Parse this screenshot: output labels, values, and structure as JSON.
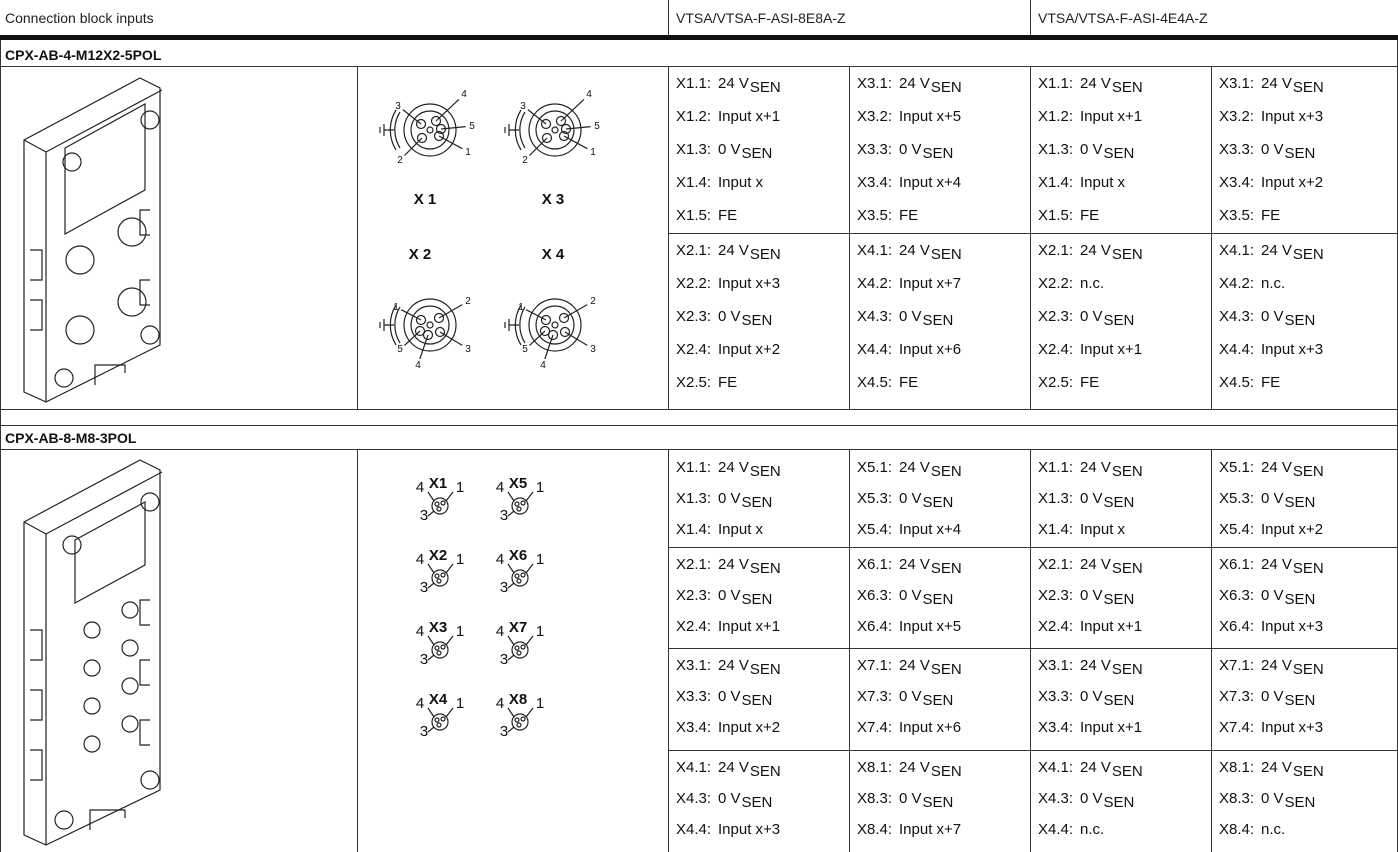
{
  "header": {
    "col0": "Connection block inputs",
    "variant1": "VTSA/VTSA-F-ASI-8E8A-Z",
    "variant2": "VTSA/VTSA-F-ASI-4E4A-Z"
  },
  "sections": [
    {
      "title": "CPX-AB-4-M12X2-5POL",
      "connectors": [
        {
          "label": "X 1",
          "pins": [
            "1",
            "2",
            "3",
            "4",
            "5"
          ]
        },
        {
          "label": "X 3",
          "pins": [
            "1",
            "2",
            "3",
            "4",
            "5"
          ]
        },
        {
          "label": "X 2",
          "pins": [
            "1",
            "2",
            "3",
            "4",
            "5"
          ]
        },
        {
          "label": "X 4",
          "pins": [
            "1",
            "2",
            "3",
            "4",
            "5"
          ]
        }
      ],
      "groups": [
        [
          [
            [
              "X1.1:",
              "24 V",
              "SEN"
            ],
            [
              "X1.2:",
              "Input x+1"
            ],
            [
              "X1.3:",
              "0 V",
              "SEN"
            ],
            [
              "X1.4:",
              "Input x"
            ],
            [
              "X1.5:",
              "FE"
            ]
          ],
          [
            [
              "X3.1:",
              "24 V",
              "SEN"
            ],
            [
              "X3.2:",
              "Input x+5"
            ],
            [
              "X3.3:",
              "0 V",
              "SEN"
            ],
            [
              "X3.4:",
              "Input x+4"
            ],
            [
              "X3.5:",
              "FE"
            ]
          ],
          [
            [
              "X1.1:",
              "24 V",
              "SEN"
            ],
            [
              "X1.2:",
              "Input x+1"
            ],
            [
              "X1.3:",
              "0 V",
              "SEN"
            ],
            [
              "X1.4:",
              "Input x"
            ],
            [
              "X1.5:",
              "FE"
            ]
          ],
          [
            [
              "X3.1:",
              "24 V",
              "SEN"
            ],
            [
              "X3.2:",
              "Input x+3"
            ],
            [
              "X3.3:",
              "0 V",
              "SEN"
            ],
            [
              "X3.4:",
              "Input x+2"
            ],
            [
              "X3.5:",
              "FE"
            ]
          ]
        ],
        [
          [
            [
              "X2.1:",
              "24 V",
              "SEN"
            ],
            [
              "X2.2:",
              "Input x+3"
            ],
            [
              "X2.3:",
              "0 V",
              "SEN"
            ],
            [
              "X2.4:",
              "Input x+2"
            ],
            [
              "X2.5:",
              "FE"
            ]
          ],
          [
            [
              "X4.1:",
              "24 V",
              "SEN"
            ],
            [
              "X4.2:",
              "Input x+7"
            ],
            [
              "X4.3:",
              "0 V",
              "SEN"
            ],
            [
              "X4.4:",
              "Input x+6"
            ],
            [
              "X4.5:",
              "FE"
            ]
          ],
          [
            [
              "X2.1:",
              "24 V",
              "SEN"
            ],
            [
              "X2.2:",
              "n.c."
            ],
            [
              "X2.3:",
              "0 V",
              "SEN"
            ],
            [
              "X2.4:",
              "Input x+1"
            ],
            [
              "X2.5:",
              "FE"
            ]
          ],
          [
            [
              "X4.1:",
              "24 V",
              "SEN"
            ],
            [
              "X4.2:",
              "n.c."
            ],
            [
              "X4.3:",
              "0 V",
              "SEN"
            ],
            [
              "X4.4:",
              "Input x+3"
            ],
            [
              "X4.5:",
              "FE"
            ]
          ]
        ]
      ]
    },
    {
      "title": "CPX-AB-8-M8-3POL",
      "connectors": [
        {
          "label": "X1",
          "pins": [
            "4",
            "1",
            "3"
          ]
        },
        {
          "label": "X2",
          "pins": [
            "4",
            "1",
            "3"
          ]
        },
        {
          "label": "X3",
          "pins": [
            "4",
            "1",
            "3"
          ]
        },
        {
          "label": "X4",
          "pins": [
            "4",
            "1",
            "3"
          ]
        },
        {
          "label": "X5",
          "pins": [
            "4",
            "1",
            "3"
          ]
        },
        {
          "label": "X6",
          "pins": [
            "4",
            "1",
            "3"
          ]
        },
        {
          "label": "X7",
          "pins": [
            "4",
            "1",
            "3"
          ]
        },
        {
          "label": "X8",
          "pins": [
            "4",
            "1",
            "3"
          ]
        }
      ],
      "groups": [
        [
          [
            [
              "X1.1:",
              "24 V",
              "SEN"
            ],
            [
              "X1.3:",
              "0 V",
              "SEN"
            ],
            [
              "X1.4:",
              "Input x"
            ]
          ],
          [
            [
              "X5.1:",
              "24 V",
              "SEN"
            ],
            [
              "X5.3:",
              "0 V",
              "SEN"
            ],
            [
              "X5.4:",
              "Input x+4"
            ]
          ],
          [
            [
              "X1.1:",
              "24 V",
              "SEN"
            ],
            [
              "X1.3:",
              "0 V",
              "SEN"
            ],
            [
              "X1.4:",
              "Input x"
            ]
          ],
          [
            [
              "X5.1:",
              "24 V",
              "SEN"
            ],
            [
              "X5.3:",
              "0 V",
              "SEN"
            ],
            [
              "X5.4:",
              "Input x+2"
            ]
          ]
        ],
        [
          [
            [
              "X2.1:",
              "24 V",
              "SEN"
            ],
            [
              "X2.3:",
              "0 V",
              "SEN"
            ],
            [
              "X2.4:",
              "Input x+1"
            ]
          ],
          [
            [
              "X6.1:",
              "24 V",
              "SEN"
            ],
            [
              "X6.3:",
              "0 V",
              "SEN"
            ],
            [
              "X6.4:",
              "Input x+5"
            ]
          ],
          [
            [
              "X2.1:",
              "24 V",
              "SEN"
            ],
            [
              "X2.3:",
              "0 V",
              "SEN"
            ],
            [
              "X2.4:",
              "Input x+1"
            ]
          ],
          [
            [
              "X6.1:",
              "24 V",
              "SEN"
            ],
            [
              "X6.3:",
              "0 V",
              "SEN"
            ],
            [
              "X6.4:",
              "Input x+3"
            ]
          ]
        ],
        [
          [
            [
              "X3.1:",
              "24 V",
              "SEN"
            ],
            [
              "X3.3:",
              "0 V",
              "SEN"
            ],
            [
              "X3.4:",
              "Input x+2"
            ]
          ],
          [
            [
              "X7.1:",
              "24 V",
              "SEN"
            ],
            [
              "X7.3:",
              "0 V",
              "SEN"
            ],
            [
              "X7.4:",
              "Input x+6"
            ]
          ],
          [
            [
              "X3.1:",
              "24 V",
              "SEN"
            ],
            [
              "X3.3:",
              "0 V",
              "SEN"
            ],
            [
              "X3.4:",
              "Input x+1"
            ]
          ],
          [
            [
              "X7.1:",
              "24 V",
              "SEN"
            ],
            [
              "X7.3:",
              "0 V",
              "SEN"
            ],
            [
              "X7.4:",
              "Input x+3"
            ]
          ]
        ],
        [
          [
            [
              "X4.1:",
              "24 V",
              "SEN"
            ],
            [
              "X4.3:",
              "0 V",
              "SEN"
            ],
            [
              "X4.4:",
              "Input x+3"
            ]
          ],
          [
            [
              "X8.1:",
              "24 V",
              "SEN"
            ],
            [
              "X8.3:",
              "0 V",
              "SEN"
            ],
            [
              "X8.4:",
              "Input x+7"
            ]
          ],
          [
            [
              "X4.1:",
              "24 V",
              "SEN"
            ],
            [
              "X4.3:",
              "0 V",
              "SEN"
            ],
            [
              "X4.4:",
              "n.c."
            ]
          ],
          [
            [
              "X8.1:",
              "24 V",
              "SEN"
            ],
            [
              "X8.3:",
              "0 V",
              "SEN"
            ],
            [
              "X8.4:",
              "n.c."
            ]
          ]
        ]
      ]
    }
  ]
}
